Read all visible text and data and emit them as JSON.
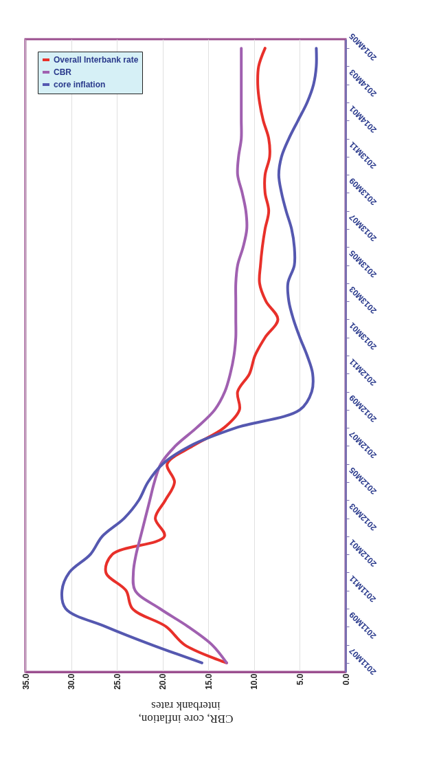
{
  "chart_data": {
    "type": "line",
    "orientation": "horizontal",
    "xlabel": "CBR, core inflation,\ninterbank rates",
    "categories": [
      "2014M05",
      null,
      "2014M03",
      null,
      "2014M01",
      null,
      "2013M11",
      null,
      "2013M09",
      null,
      "2013M07",
      null,
      "2013M05",
      null,
      "2013M03",
      null,
      "2013M01",
      null,
      "2012M11",
      null,
      "2012M09",
      null,
      "2012M07",
      null,
      "2012M05",
      null,
      "2012M03",
      null,
      "2012M01",
      null,
      "2011M11",
      null,
      "2011M09",
      null,
      "2011M07"
    ],
    "series": [
      {
        "name": "Overall Interbank rate",
        "color": "#e8302a",
        "values": [
          8.8,
          9.5,
          9.6,
          9.4,
          9,
          8.4,
          8.3,
          8.8,
          8.8,
          8.4,
          8.8,
          9.1,
          9.3,
          9.4,
          8.7,
          7.4,
          8.8,
          9.9,
          10.5,
          11.8,
          11.6,
          13.3,
          16.7,
          19.5,
          18.7,
          19.7,
          20.8,
          19.8,
          25.5,
          26.2,
          24,
          23.3,
          19.6,
          17.6,
          13
        ]
      },
      {
        "name": "CBR",
        "color": "#a060b0",
        "values": [
          11.4,
          11.4,
          11.4,
          11.4,
          11.4,
          11.4,
          11.7,
          11.8,
          11.3,
          10.9,
          10.8,
          11.2,
          11.8,
          12,
          12,
          12,
          12,
          12.2,
          12.6,
          13.2,
          14.3,
          16.3,
          18.6,
          20.2,
          20.9,
          21.4,
          21.9,
          22.4,
          22.9,
          23.2,
          23,
          20.3,
          17.2,
          14.6,
          13
        ]
      },
      {
        "name": "core inflation",
        "color": "#5558b0",
        "values": [
          3.2,
          3.2,
          3.5,
          4.2,
          5.2,
          6.2,
          7,
          7.3,
          7,
          6.5,
          5.9,
          5.6,
          5.6,
          6.3,
          6.2,
          5.7,
          5,
          4.2,
          3.6,
          3.7,
          5,
          12,
          17,
          20,
          21.6,
          22.6,
          24.2,
          26.6,
          27.9,
          30.2,
          31,
          30.6,
          26.2,
          21.2,
          15.7
        ]
      }
    ],
    "xlim": [
      35,
      0
    ],
    "xticks": [
      {
        "value": 35,
        "label": "35.0"
      },
      {
        "value": 30,
        "label": "30.0"
      },
      {
        "value": 25,
        "label": "25.0"
      },
      {
        "value": 20,
        "label": "20.0"
      },
      {
        "value": 15,
        "label": "15.0"
      },
      {
        "value": 10,
        "label": "10.0"
      },
      {
        "value": 5,
        "label": "5.0"
      },
      {
        "value": 0,
        "label": "0.0"
      }
    ],
    "grid": "x",
    "legend": "top left"
  }
}
